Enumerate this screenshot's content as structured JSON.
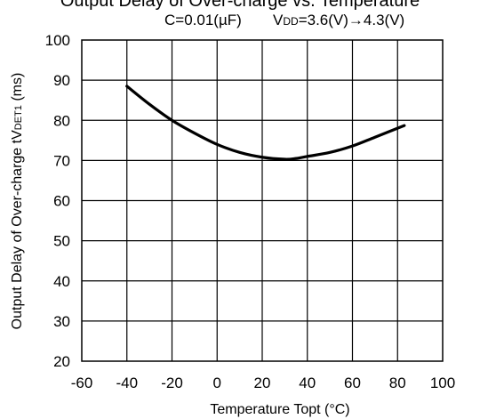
{
  "chart_data": {
    "type": "line",
    "title": "Output Delay of Over-charge vs. Temperature",
    "subtitle": {
      "capacitance": "C=0.01(µF)",
      "vdd_prefix": "V",
      "vdd_sub": "DD",
      "vdd_rest": "=3.6(V)→4.3(V)"
    },
    "xlabel": "Temperature Topt (°C)",
    "ylabel": {
      "prefix": "Output Delay of Over-charge tV",
      "sub": "DET1",
      "suffix": " (ms)"
    },
    "xlim": [
      -60,
      100
    ],
    "ylim": [
      20,
      100
    ],
    "x_ticks": [
      -60,
      -40,
      -20,
      0,
      20,
      40,
      60,
      80,
      100
    ],
    "y_ticks": [
      20,
      30,
      40,
      50,
      60,
      70,
      80,
      90,
      100
    ],
    "grid": true,
    "series": [
      {
        "x": [
          -40,
          -30,
          -20,
          -10,
          0,
          10,
          20,
          30,
          35,
          40,
          50,
          60,
          70,
          83
        ],
        "y": [
          88.5,
          84.0,
          80.0,
          76.8,
          74.0,
          72.0,
          70.8,
          70.3,
          70.5,
          71.0,
          72.0,
          73.6,
          75.8,
          78.7
        ]
      }
    ]
  }
}
